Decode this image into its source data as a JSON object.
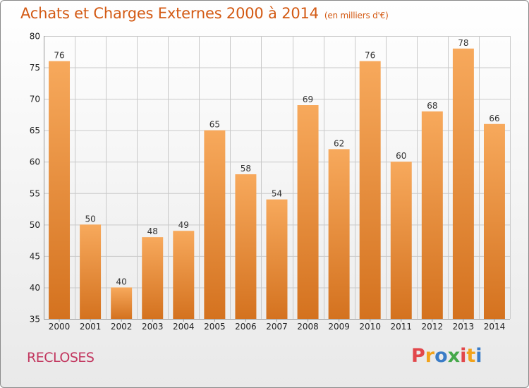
{
  "header": {
    "title": "Achats et Charges Externes 2000 à 2014",
    "unit": "(en milliers d'€)"
  },
  "footer": {
    "commune": "RECLOSES",
    "logo_text": "Proxiti"
  },
  "colors": {
    "title": "#d35a14",
    "commune": "#c2375f",
    "bar_top": "#f7a95c",
    "bar_bottom": "#d4721f",
    "grid": "#c9c9c9",
    "logo": [
      "#e2474b",
      "#f2a31b",
      "#3a7cc7",
      "#45a84a",
      "#e2474b",
      "#f2a31b",
      "#3a7cc7"
    ]
  },
  "chart_data": {
    "type": "bar",
    "title": "Achats et Charges Externes 2000 à 2014",
    "categories": [
      "2000",
      "2001",
      "2002",
      "2003",
      "2004",
      "2005",
      "2006",
      "2007",
      "2008",
      "2009",
      "2010",
      "2011",
      "2012",
      "2013",
      "2014"
    ],
    "values": [
      76,
      50,
      40,
      48,
      49,
      65,
      58,
      54,
      69,
      62,
      76,
      60,
      68,
      78,
      66
    ],
    "ylim": [
      35,
      80
    ],
    "yticks": [
      35,
      40,
      45,
      50,
      55,
      60,
      65,
      70,
      75,
      80
    ],
    "grid": true,
    "xlabel": "",
    "ylabel": ""
  }
}
